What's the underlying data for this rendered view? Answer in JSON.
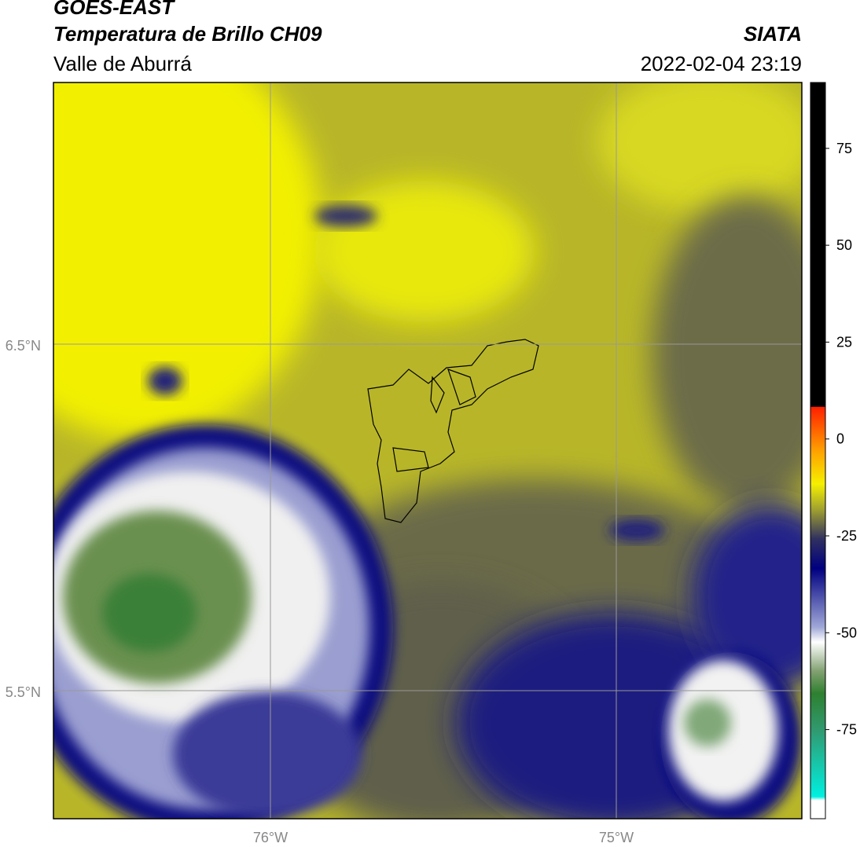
{
  "header": {
    "title": "GOES-EAST",
    "subtitle": "Temperatura de Brillo CH09",
    "region": "Valle de Aburrá",
    "source": "SIATA",
    "datetime": "2022-02-04 23:19"
  },
  "map": {
    "lat_labels": [
      "6.5°N",
      "5.5°N"
    ],
    "lon_labels": [
      "76°W",
      "75°W"
    ]
  },
  "colorbar": {
    "lim": [
      -98,
      92
    ],
    "ticks": [
      75,
      50,
      25,
      0,
      -25,
      -50,
      -75
    ]
  }
}
